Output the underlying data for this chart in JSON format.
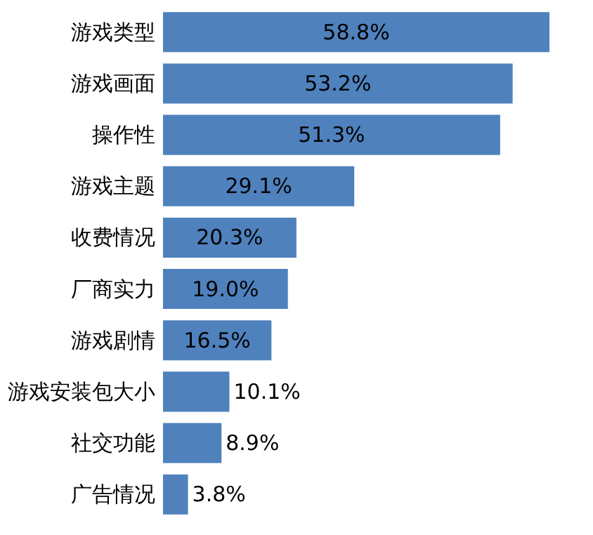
{
  "chart_data": {
    "type": "bar",
    "orientation": "horizontal",
    "categories": [
      "游戏类型",
      "游戏画面",
      "操作性",
      "游戏主题",
      "收费情况",
      "厂商实力",
      "游戏剧情",
      "游戏安装包大小",
      "社交功能",
      "广告情况"
    ],
    "values": [
      58.8,
      53.2,
      51.3,
      29.1,
      20.3,
      19.0,
      16.5,
      10.1,
      8.9,
      3.8
    ],
    "value_labels": [
      "58.8%",
      "53.2%",
      "51.3%",
      "29.1%",
      "20.3%",
      "19.0%",
      "16.5%",
      "10.1%",
      "8.9%",
      "3.8%"
    ],
    "color": "#4f81bd",
    "grid": false
  }
}
